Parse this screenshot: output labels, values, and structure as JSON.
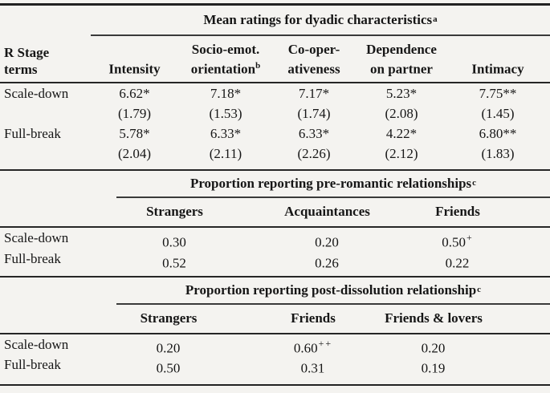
{
  "page": {
    "background_color": "#f4f3f0",
    "text_color": "#161616",
    "rule_color": "#262626"
  },
  "row_label_header": {
    "line1": "R Stage",
    "line2": "terms"
  },
  "section1": {
    "title": "Mean ratings for dyadic characteristics",
    "title_superscript": "a",
    "columns": [
      {
        "line1": "",
        "line2": "Intensity",
        "sup": ""
      },
      {
        "line1": "Socio-emot.",
        "line2": "orientation",
        "sup": "b"
      },
      {
        "line1": "Co-oper-",
        "line2": "ativeness",
        "sup": ""
      },
      {
        "line1": "Dependence",
        "line2": "on partner",
        "sup": ""
      },
      {
        "line1": "",
        "line2": "Intimacy",
        "sup": ""
      }
    ],
    "rows": [
      {
        "label": "Scale-down",
        "means": [
          "6.62*",
          "7.18*",
          "7.17*",
          "5.23*",
          "7.75**"
        ],
        "sds": [
          "(1.79)",
          "(1.53)",
          "(1.74)",
          "(2.08)",
          "(1.45)"
        ]
      },
      {
        "label": "Full-break",
        "means": [
          "5.78*",
          "6.33*",
          "6.33*",
          "4.22*",
          "6.80**"
        ],
        "sds": [
          "(2.04)",
          "(2.11)",
          "(2.26)",
          "(2.12)",
          "(1.83)"
        ]
      }
    ]
  },
  "section2": {
    "title": "Proportion reporting pre-romantic relationships",
    "title_superscript": "c",
    "columns": [
      "Strangers",
      "Acquaintances",
      "Friends"
    ],
    "rows": [
      {
        "label": "Scale-down",
        "values": [
          "0.30",
          "0.20",
          "0.50"
        ],
        "sups": [
          "",
          "",
          "+"
        ]
      },
      {
        "label": "Full-break",
        "values": [
          "0.52",
          "0.26",
          "0.22"
        ],
        "sups": [
          "",
          "",
          ""
        ]
      }
    ]
  },
  "section3": {
    "title": "Proportion reporting post-dissolution relationship",
    "title_superscript": "c",
    "columns": [
      "Strangers",
      "Friends",
      "Friends & lovers"
    ],
    "rows": [
      {
        "label": "Scale-down",
        "values": [
          "0.20",
          "0.60",
          "0.20"
        ],
        "sups": [
          "",
          "++",
          ""
        ]
      },
      {
        "label": "Full-break",
        "values": [
          "0.50",
          "0.31",
          "0.19"
        ],
        "sups": [
          "",
          "",
          ""
        ]
      }
    ]
  }
}
